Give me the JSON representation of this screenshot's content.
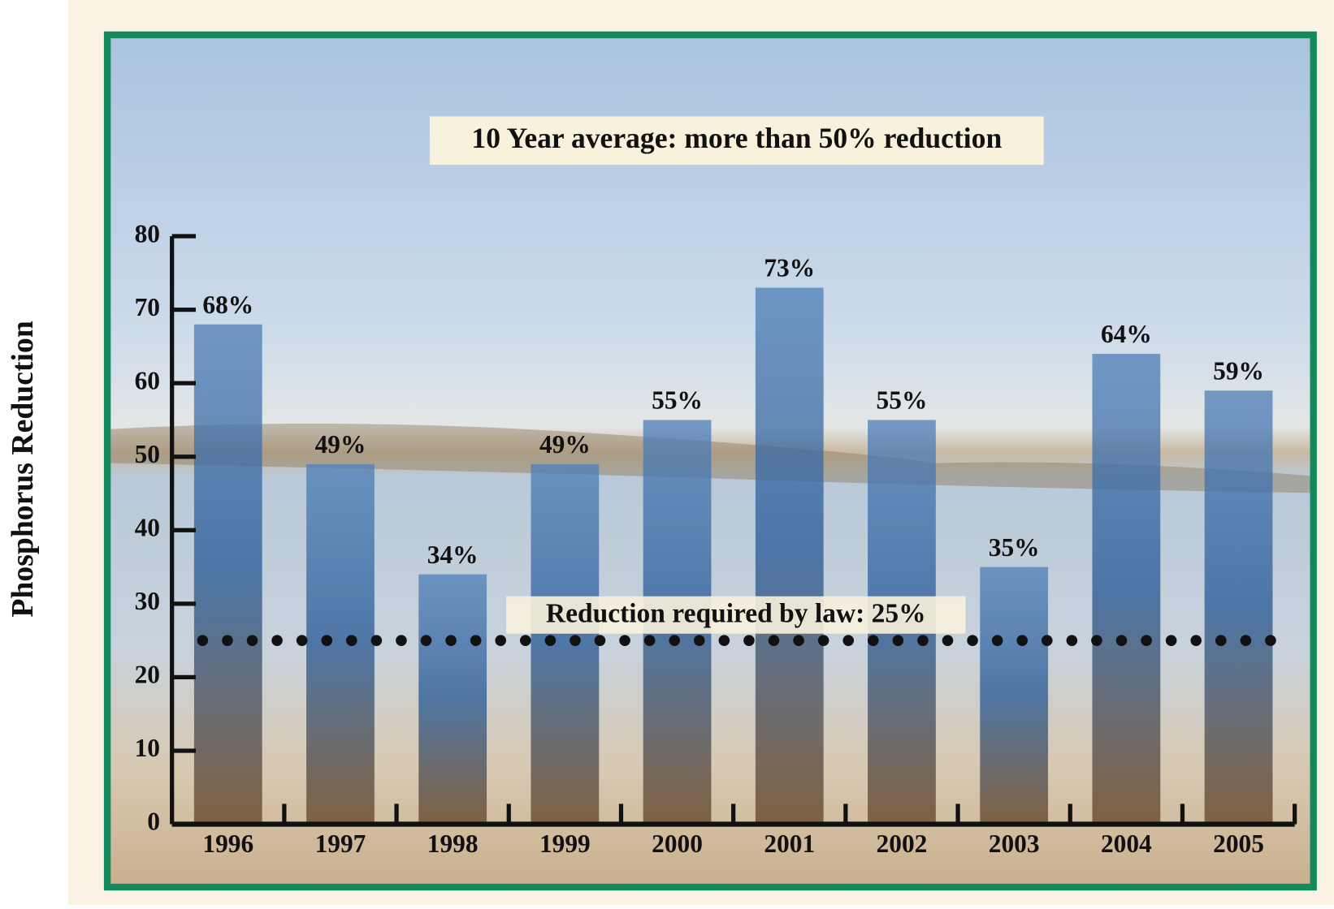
{
  "chart_data": {
    "type": "bar",
    "title": "10 Year average: more than 50% reduction",
    "y_label": "Phosphorus Reduction",
    "categories": [
      "1996",
      "1997",
      "1998",
      "1999",
      "2000",
      "2001",
      "2002",
      "2003",
      "2004",
      "2005"
    ],
    "values": [
      68,
      49,
      34,
      49,
      55,
      73,
      55,
      35,
      64,
      59
    ],
    "value_labels": [
      "68%",
      "49%",
      "34%",
      "49%",
      "55%",
      "73%",
      "55%",
      "35%",
      "64%",
      "59%"
    ],
    "color": "#2f65a6",
    "ylim": [
      0,
      80
    ],
    "yticks": [
      0,
      10,
      20,
      30,
      40,
      50,
      60,
      70,
      80
    ],
    "reference_line": {
      "value": 25,
      "label": "Reduction required by law:  25%"
    }
  }
}
